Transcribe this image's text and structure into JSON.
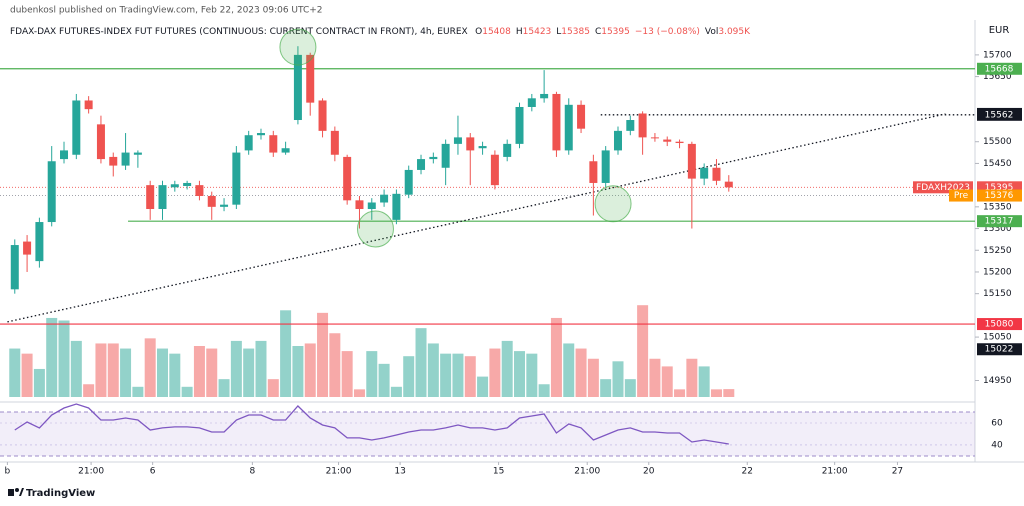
{
  "chart_data": {
    "type": "candlestick",
    "header": "dubenkosl published on TradingView.com, Feb 22, 2023 09:06 UTC+2",
    "title": "FDAX-DAX FUTURES-INDEX FUT FUTURES (CONTINUOUS: CURRENT CONTRACT IN FRONT), 4h, EUREX",
    "ohlc_legend": [
      {
        "label": "O",
        "value": 15408
      },
      {
        "label": "H",
        "value": 15423
      },
      {
        "label": "L",
        "value": 15385
      },
      {
        "label": "C",
        "value": 15395
      }
    ],
    "change": "−13 (−0.08%)",
    "volume_label": "Vol",
    "volume_value": "3.095K",
    "currency": "EUR",
    "brand": "TradingView",
    "up_color": "#26a69a",
    "down_color": "#ef5350",
    "open": [
      15160,
      15270,
      15225,
      15315,
      15460,
      15470,
      15595,
      15540,
      15465,
      15445,
      15470,
      15400,
      15345,
      15395,
      15398,
      15400,
      15375,
      15350,
      15355,
      15480,
      15515,
      15515,
      15475,
      15550,
      15700,
      15595,
      15525,
      15465,
      15365,
      15345,
      15360,
      15320,
      15378,
      15435,
      15460,
      15440,
      15495,
      15510,
      15485,
      15470,
      15465,
      15495,
      15580,
      15600,
      15610,
      15480,
      15585,
      15455,
      15405,
      15480,
      15525,
      15565,
      15510,
      15505,
      15500,
      15495,
      15415,
      15440,
      15408
    ],
    "high": [
      15275,
      15285,
      15325,
      15490,
      15500,
      15610,
      15605,
      15560,
      15475,
      15520,
      15480,
      15410,
      15410,
      15410,
      15410,
      15410,
      15385,
      15370,
      15490,
      15525,
      15530,
      15525,
      15500,
      15720,
      15705,
      15600,
      15535,
      15470,
      15375,
      15370,
      15390,
      15390,
      15445,
      15470,
      15475,
      15505,
      15560,
      15520,
      15500,
      15480,
      15505,
      15590,
      15610,
      15665,
      15615,
      15600,
      15595,
      15470,
      15490,
      15535,
      15560,
      15570,
      15520,
      15512,
      15505,
      15500,
      15450,
      15460,
      15423
    ],
    "low": [
      15150,
      15200,
      15210,
      15305,
      15450,
      15460,
      15565,
      15450,
      15420,
      15435,
      15440,
      15320,
      15320,
      15385,
      15390,
      15365,
      15320,
      15340,
      15345,
      15470,
      15505,
      15465,
      15470,
      15540,
      15560,
      15510,
      15455,
      15355,
      15300,
      15320,
      15350,
      15310,
      15370,
      15425,
      15450,
      15400,
      15470,
      15400,
      15470,
      15390,
      15455,
      15485,
      15570,
      15590,
      15465,
      15470,
      15520,
      15330,
      15395,
      15470,
      15515,
      15470,
      15500,
      15490,
      15485,
      15300,
      15400,
      15400,
      15385
    ],
    "close": [
      15262,
      15240,
      15315,
      15455,
      15480,
      15595,
      15575,
      15460,
      15445,
      15475,
      15475,
      15345,
      15400,
      15402,
      15405,
      15375,
      15350,
      15355,
      15475,
      15515,
      15520,
      15475,
      15485,
      15700,
      15590,
      15525,
      15470,
      15365,
      15345,
      15360,
      15378,
      15380,
      15435,
      15460,
      15465,
      15495,
      15510,
      15480,
      15490,
      15400,
      15495,
      15580,
      15600,
      15610,
      15480,
      15585,
      15530,
      15405,
      15480,
      15525,
      15550,
      15510,
      15508,
      15500,
      15497,
      15415,
      15440,
      15410,
      15395
    ],
    "ylim": [
      14912,
      15808
    ],
    "yticks": [
      15700,
      15650,
      15500,
      15450,
      15350,
      15300,
      15250,
      15200,
      15150,
      15050,
      14950
    ],
    "xlim": [
      -1.2,
      78
    ],
    "xticks": [
      {
        "value": -0.6,
        "label": "b"
      },
      {
        "value": 6.2,
        "label": "21:00"
      },
      {
        "value": 11.2,
        "label": "6"
      },
      {
        "value": 19.3,
        "label": "8"
      },
      {
        "value": 26.3,
        "label": "21:00"
      },
      {
        "value": 31.3,
        "label": "13"
      },
      {
        "value": 39.3,
        "label": "15"
      },
      {
        "value": 46.5,
        "label": "21:00"
      },
      {
        "value": 51.5,
        "label": "20"
      },
      {
        "value": 59.5,
        "label": "22"
      },
      {
        "value": 66.6,
        "label": "21:00"
      },
      {
        "value": 71.7,
        "label": "27"
      }
    ],
    "levels": [
      {
        "value": 15668,
        "color": "#4caf50",
        "line": "solid",
        "x_start": -1.2
      },
      {
        "value": 15564,
        "color": "#131722"
      },
      {
        "value": 15562,
        "color": "#131722",
        "line": "dotted",
        "x_start": 47.6
      },
      {
        "value": 15395,
        "color": "#ef5350",
        "name": "FDAXH2023",
        "line": "current"
      },
      {
        "value": 15376,
        "color": "#ff9800",
        "name": "Pre",
        "line": "pre"
      },
      {
        "value": 15317,
        "color": "#4caf50",
        "line": "solid",
        "x_start": 9.2
      },
      {
        "value": 15080,
        "color": "#f23645",
        "line": "solid",
        "x_start": -1.2
      },
      {
        "value": 15022,
        "color": "#131722"
      }
    ],
    "trendline": {
      "x": [
        -0.6,
        75.6
      ],
      "y": [
        15085,
        15564
      ]
    },
    "circles": {
      "x": [
        23,
        29.3,
        48.6
      ],
      "y": [
        15718,
        15299,
        15357
      ],
      "color": "#4caf50"
    },
    "volume": {
      "values": [
        19,
        17,
        11,
        31,
        30,
        22,
        5,
        21,
        21,
        19,
        4,
        23,
        19,
        17,
        4,
        20,
        19,
        7,
        22,
        19,
        22,
        7,
        34,
        20,
        21,
        33,
        25,
        18,
        3,
        18,
        13,
        4,
        16,
        27,
        21,
        17,
        17,
        16,
        8,
        19,
        22,
        18,
        17,
        5,
        31,
        21,
        19,
        15,
        7,
        14,
        7,
        36,
        15,
        12,
        3,
        15,
        12,
        3,
        3.095
      ],
      "ylim": [
        0,
        40
      ],
      "up_color": "#93d2ca",
      "down_color": "#f7a9a8"
    },
    "rsi": {
      "values": [
        53.6,
        60.9,
        55.5,
        67.3,
        73.6,
        77.3,
        73.6,
        62.7,
        62.7,
        64.5,
        62.7,
        53.6,
        55.5,
        56.4,
        56.4,
        55.5,
        51.8,
        51.8,
        62.7,
        67.3,
        67.3,
        62.7,
        62.7,
        75.5,
        64.5,
        58.2,
        55.5,
        46.4,
        46.4,
        44.5,
        46.4,
        49.1,
        51.8,
        53.6,
        53.6,
        55.5,
        58.2,
        55.5,
        55.5,
        53.6,
        55.5,
        64.5,
        66.4,
        68.2,
        50.9,
        59.1,
        55.5,
        44.5,
        49.1,
        53.6,
        55.5,
        51.8,
        51.8,
        50.9,
        50.9,
        42.7,
        44.5,
        42.7,
        40.9
      ],
      "ylim": [
        24.5,
        79.1
      ],
      "yticks": [
        60,
        40
      ],
      "bands": [
        70,
        30
      ],
      "color": "#7e57c2"
    }
  }
}
